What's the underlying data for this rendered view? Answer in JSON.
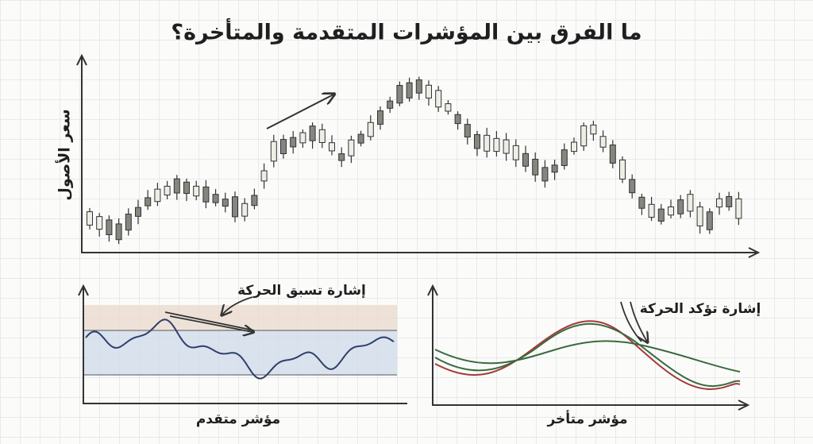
{
  "header": {
    "title": "ما الفرق بين المؤشرات المتقدمة والمتأخرة؟"
  },
  "price_chart": {
    "y_axis_label": "سعر الأصول"
  },
  "leading_panel": {
    "annotation": "إشارة تسبق الحركة",
    "label": "مؤشر متقدم"
  },
  "lagging_panel": {
    "annotation": "إشارة تؤكد الحركة",
    "label": "مؤشر متأخر"
  }
}
